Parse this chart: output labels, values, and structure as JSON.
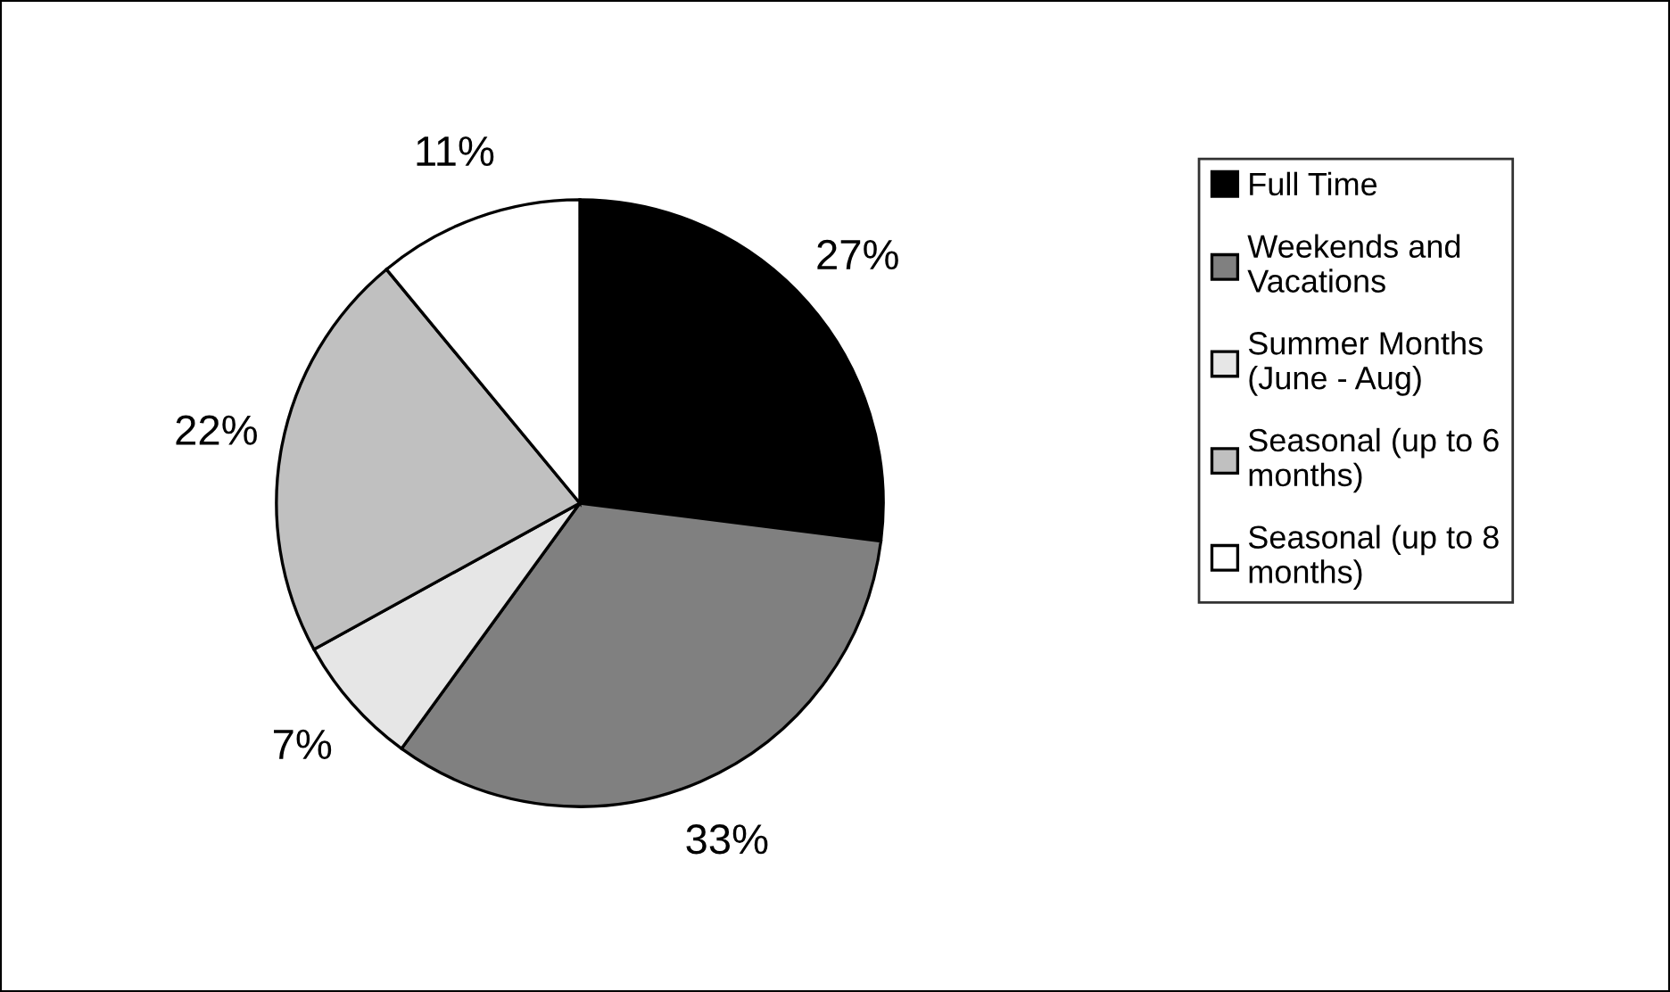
{
  "chart_data": {
    "type": "pie",
    "categories": [
      "Full Time",
      "Weekends and\nVacations",
      "Summer Months\n(June - Aug)",
      "Seasonal (up to 6\nmonths)",
      "Seasonal (up to 8\nmonths)"
    ],
    "values": [
      27,
      33,
      7,
      22,
      11
    ],
    "value_labels": [
      "27%",
      "33%",
      "7%",
      "22%",
      "11%"
    ],
    "colors": [
      "#000000",
      "#808080",
      "#e6e6e6",
      "#c0c0c0",
      "#ffffff"
    ],
    "legend": "right"
  }
}
